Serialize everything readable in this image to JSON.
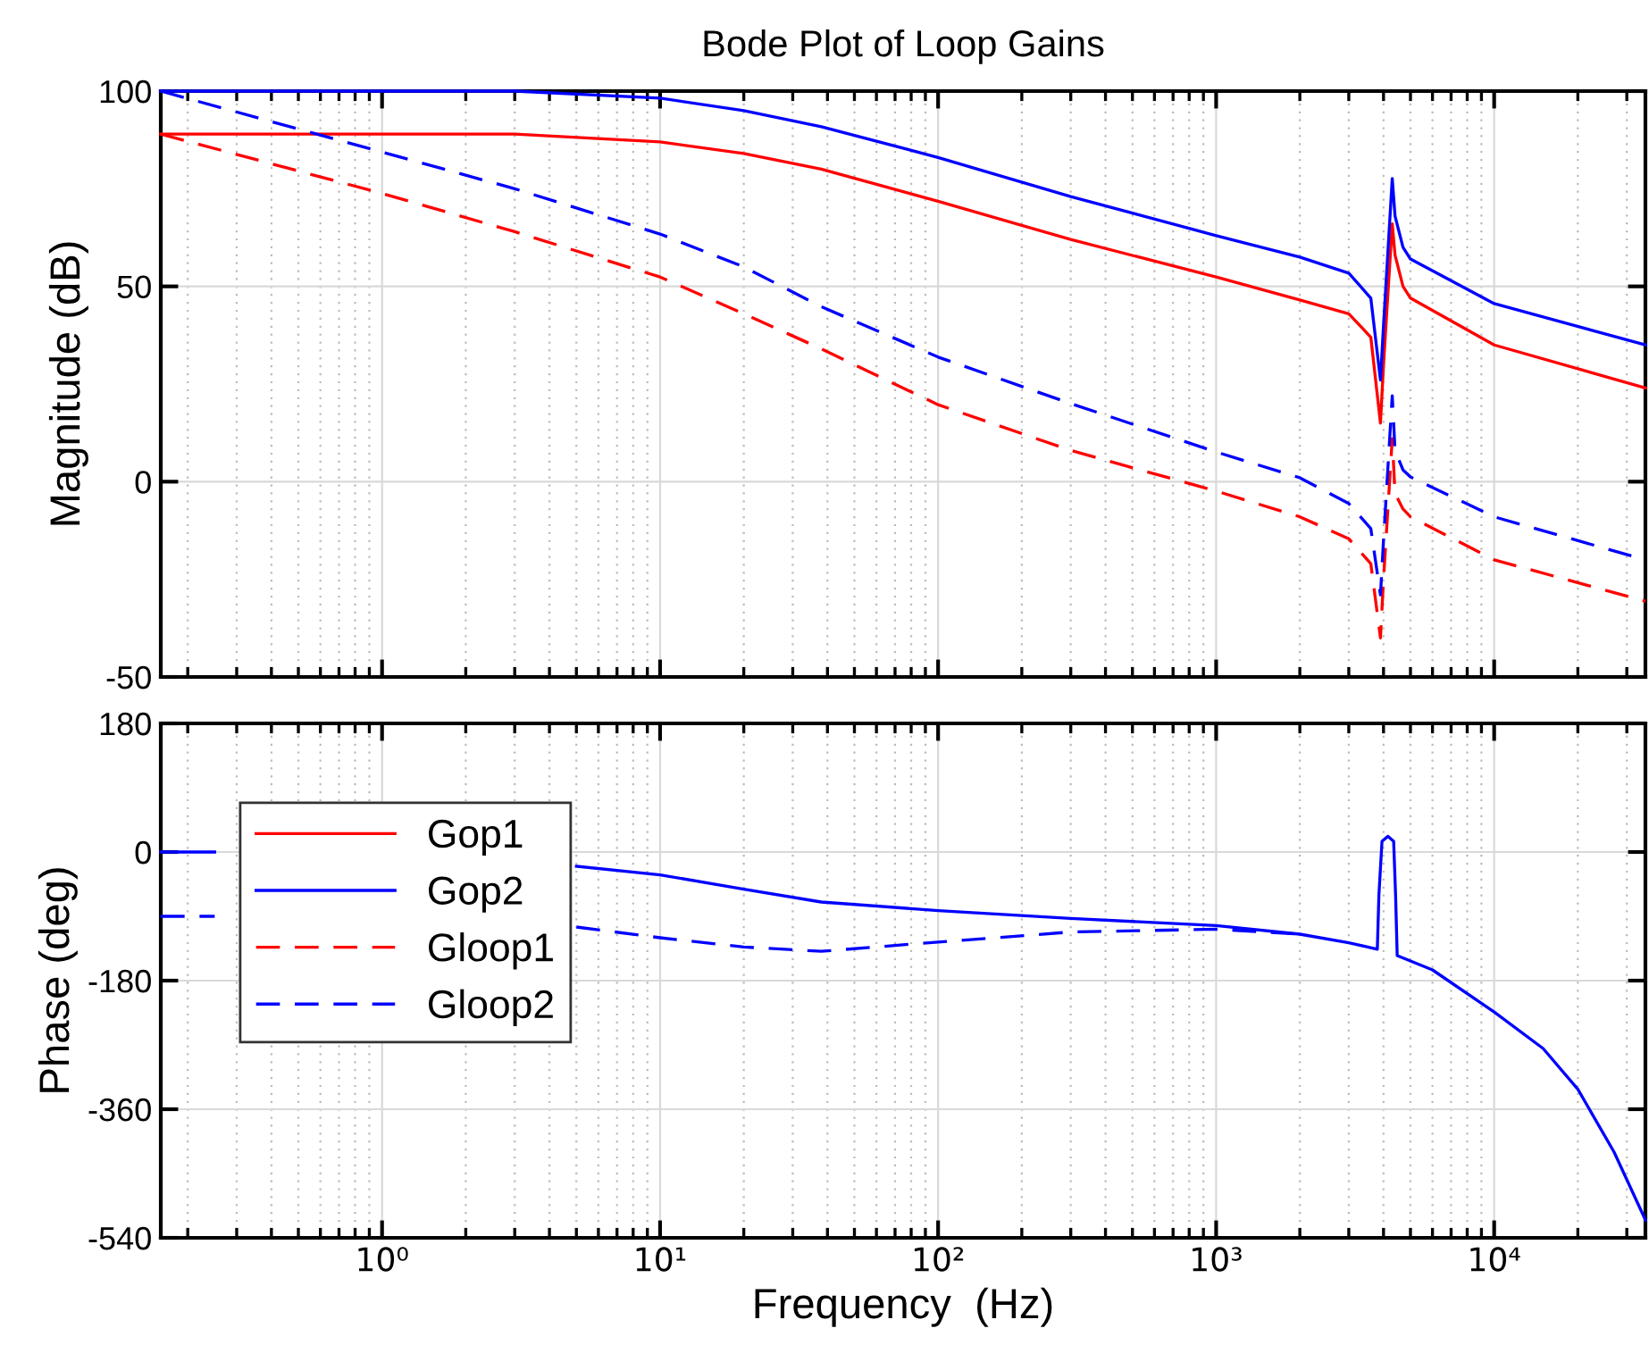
{
  "chart_data": [
    {
      "type": "line",
      "title": "Bode Plot of Loop Gains",
      "ylabel": "Magnitude (dB)",
      "xlim": [
        0.16,
        35000
      ],
      "xticks": [
        {
          "value": 1,
          "label": null
        },
        {
          "value": 10,
          "label": null
        },
        {
          "value": 100,
          "label": null
        },
        {
          "value": 1000,
          "label": null
        },
        {
          "value": 10000,
          "label": null
        }
      ],
      "ylim": [
        -50,
        100
      ],
      "yticks": [
        100,
        50,
        0,
        -50
      ],
      "log": "x",
      "grid": true,
      "tick_labels": "y",
      "legend": false,
      "x": [
        0.16,
        1,
        3,
        10,
        20,
        38,
        100,
        300,
        1000,
        2000,
        3000,
        3600,
        3900,
        4000,
        4300,
        4400,
        4700,
        5000,
        10000,
        35000
      ],
      "series": [
        {
          "color": "#ff0000",
          "line_style": "solid",
          "values": [
            89,
            89,
            89,
            87,
            84,
            80,
            71.8,
            62,
            52.4,
            46.5,
            43,
            37,
            15,
            30,
            66,
            58,
            50,
            47,
            35,
            24
          ]
        },
        {
          "color": "#0000ff",
          "line_style": "solid",
          "values": [
            100,
            100,
            100,
            98.2,
            95,
            90.9,
            83,
            73,
            63,
            57.5,
            53.4,
            47,
            26,
            40,
            77.6,
            68,
            60,
            57,
            45.6,
            35
          ]
        },
        {
          "color": "#ff0000",
          "line_style": "dashed",
          "values": [
            89,
            73.8,
            64,
            52.4,
            43,
            34,
            19.7,
            8,
            -2.4,
            -9,
            -14.6,
            -21,
            -40,
            -25,
            11,
            -3,
            -7,
            -9,
            -20,
            -30.6
          ]
        },
        {
          "color": "#0000ff",
          "line_style": "dashed",
          "values": [
            100,
            84.4,
            75,
            63.4,
            55,
            44.8,
            31.9,
            20,
            7.6,
            1,
            -5.6,
            -12,
            -29,
            -15,
            22,
            8,
            3,
            1.2,
            -9,
            -20
          ]
        }
      ]
    },
    {
      "type": "line",
      "xlabel": "Frequency  (Hz)",
      "ylabel": "Phase (deg)",
      "xlim": [
        0.16,
        35000
      ],
      "xticks": [
        {
          "value": 1,
          "label": "10⁰"
        },
        {
          "value": 10,
          "label": "10¹"
        },
        {
          "value": 100,
          "label": "10²"
        },
        {
          "value": 1000,
          "label": "10³"
        },
        {
          "value": 10000,
          "label": "10⁴"
        }
      ],
      "ylim": [
        -540,
        180
      ],
      "yticks": [
        180,
        0,
        -180,
        -360,
        -540
      ],
      "log": "x",
      "grid": true,
      "legend": "top left",
      "series": [
        {
          "name": "Gop1",
          "color": "#ff0000",
          "line_style": "solid"
        },
        {
          "name": "Gop2",
          "color": "#0000ff",
          "line_style": "solid",
          "x": [
            0.16,
            0.25,
            1,
            5,
            10,
            20,
            38,
            100,
            300,
            1000,
            2000,
            3000,
            3800,
            3850,
            3950,
            4150,
            4350,
            4420,
            4480,
            6000,
            10000,
            15000,
            20000,
            27000,
            35000
          ],
          "values": [
            0,
            0,
            null,
            -20,
            -32,
            -52,
            -70,
            -82,
            -93,
            -103,
            -115,
            -127,
            -136,
            -60,
            15,
            22,
            15,
            -60,
            -145,
            -165,
            -224,
            -275,
            -332,
            -420,
            -515
          ]
        },
        {
          "name": "Gloop1",
          "color": "#ff0000",
          "line_style": "dashed"
        },
        {
          "name": "Gloop2",
          "color": "#0000ff",
          "line_style": "dashed",
          "x": [
            0.16,
            0.25,
            1,
            5,
            10,
            20,
            38,
            100,
            300,
            1000,
            2000
          ],
          "values": [
            -90,
            -90,
            null,
            -105,
            -120,
            -133,
            -139,
            -126,
            -112,
            -108,
            -115
          ]
        }
      ]
    }
  ]
}
